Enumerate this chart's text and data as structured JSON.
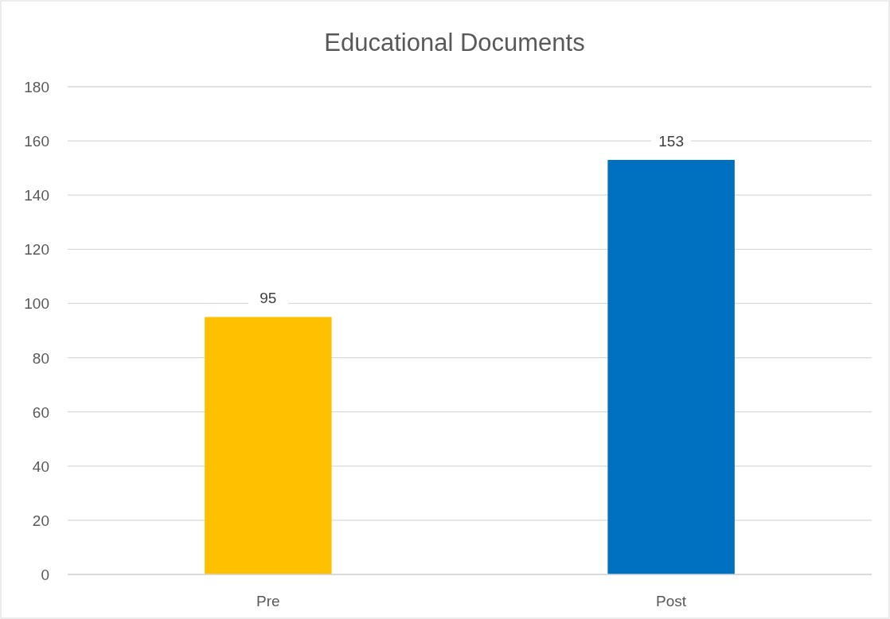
{
  "chart_data": {
    "type": "bar",
    "title": "Educational Documents",
    "categories": [
      "Pre",
      "Post"
    ],
    "values": [
      95,
      153
    ],
    "colors": [
      "#ffc000",
      "#0070c0"
    ],
    "ylim": [
      0,
      180
    ],
    "yticks": [
      0,
      20,
      40,
      60,
      80,
      100,
      120,
      140,
      160,
      180
    ],
    "grid": "y",
    "data_labels": true
  }
}
